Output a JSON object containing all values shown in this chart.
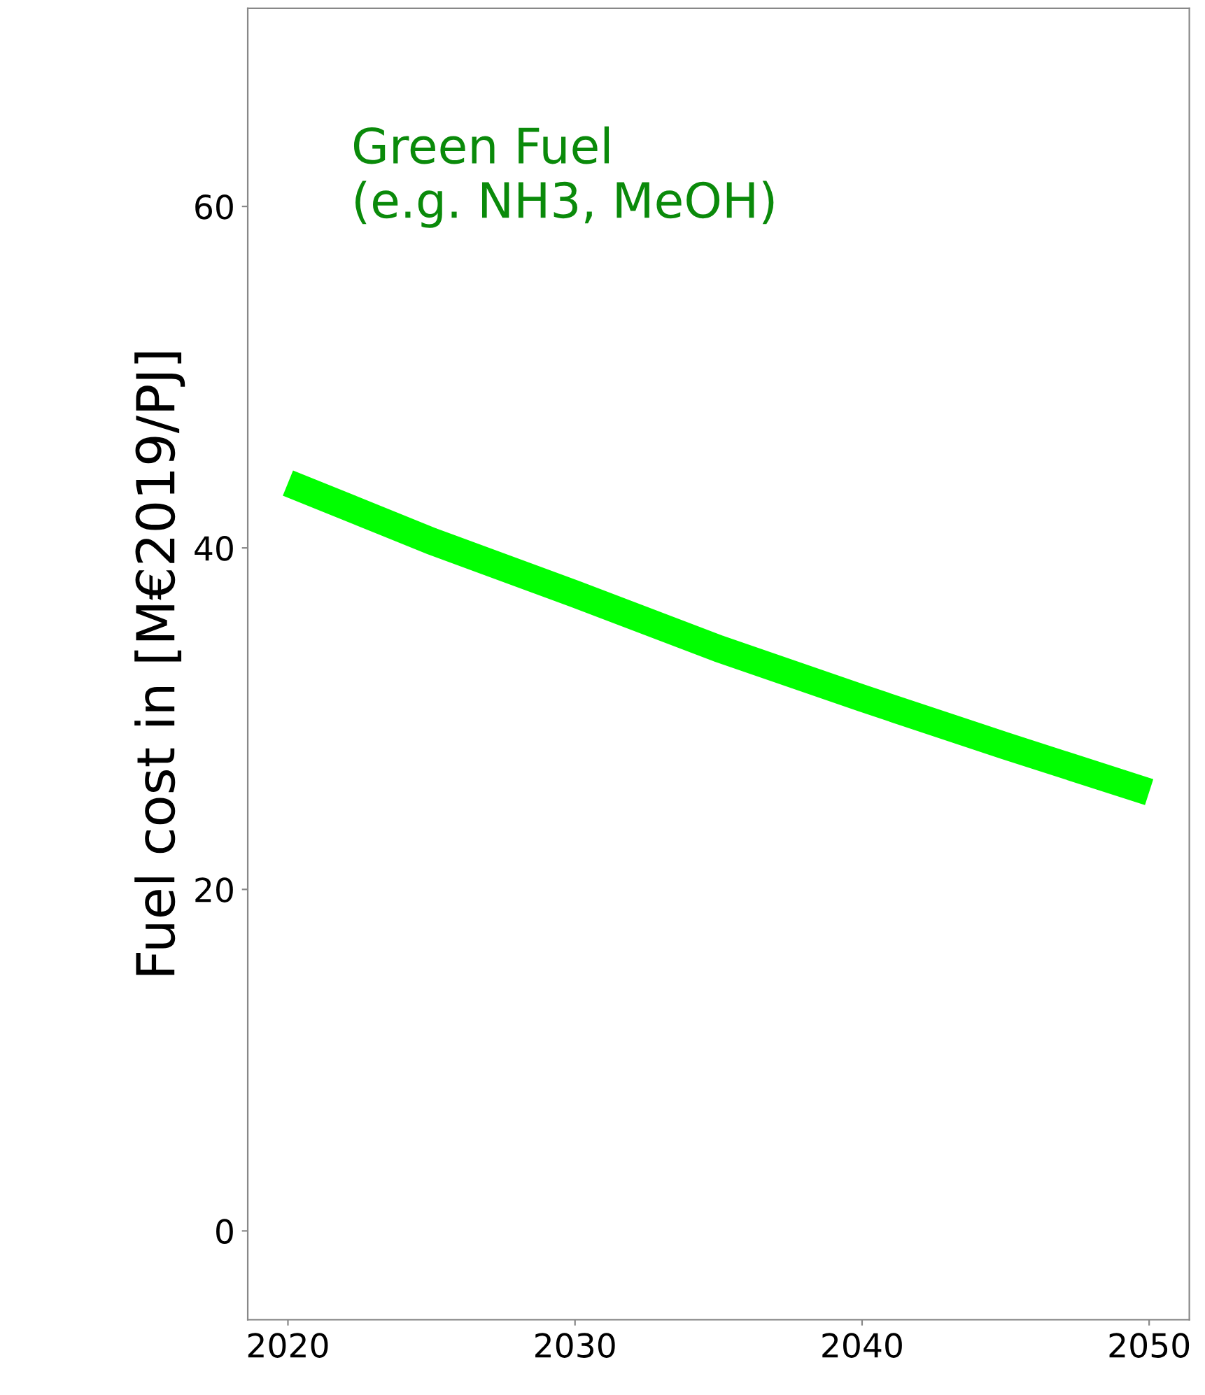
{
  "chart_data": {
    "type": "line",
    "ylabel": "Fuel cost in [M€2019/PJ]",
    "annotations": [
      "Green Fuel\n(e.g. NH3, MeOH)"
    ],
    "x": [
      2020,
      2025,
      2030,
      2035,
      2040,
      2045,
      2050
    ],
    "series": [
      {
        "color": "#00ff00",
        "values": [
          43.8,
          40.4,
          37.3,
          34.1,
          31.2,
          28.4,
          25.7
        ]
      }
    ],
    "xlim": [
      2018.6,
      2051.4
    ],
    "ylim": [
      -5.2,
      71.6
    ],
    "xticks": [
      2020,
      2030,
      2040,
      2050
    ],
    "yticks": [
      0,
      20,
      40,
      60
    ],
    "grid": false,
    "legend": false,
    "marker": "none",
    "line_style": "solid"
  }
}
